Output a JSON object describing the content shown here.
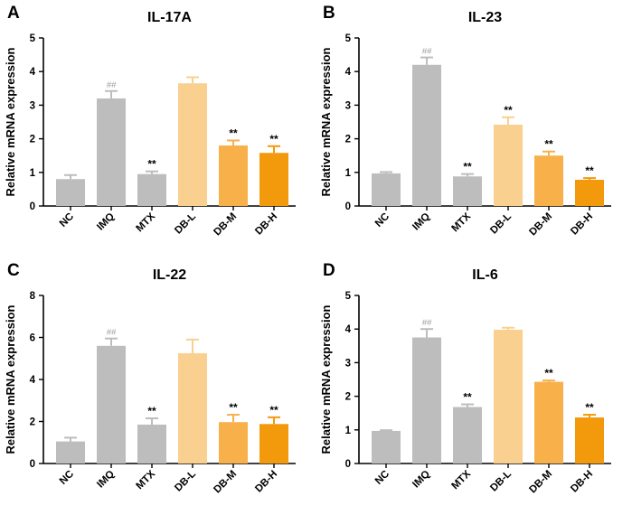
{
  "colors": {
    "NC": "#bdbdbd",
    "IMQ": "#bdbdbd",
    "MTX": "#bdbdbd",
    "DB-L": "#f9d08f",
    "DB-M": "#f7b04a",
    "DB-H": "#f39a0c",
    "hash": "#9a9a9a",
    "axis": "#000000"
  },
  "chart_data": [
    {
      "panel": "A",
      "type": "bar",
      "title": "IL-17A",
      "ylabel": "Relative mRNA expression",
      "categories": [
        "NC",
        "IMQ",
        "MTX",
        "DB-L",
        "DB-M",
        "DB-H"
      ],
      "values": [
        0.8,
        3.2,
        0.95,
        3.65,
        1.8,
        1.58
      ],
      "errors": [
        0.12,
        0.22,
        0.08,
        0.18,
        0.15,
        0.2
      ],
      "significance": [
        "",
        "##",
        "**",
        "",
        "**",
        "**"
      ],
      "ylim": [
        0,
        5
      ],
      "yticks": [
        0,
        1,
        2,
        3,
        4,
        5
      ]
    },
    {
      "panel": "B",
      "type": "bar",
      "title": "IL-23",
      "ylabel": "Relative mRNA expression",
      "categories": [
        "NC",
        "IMQ",
        "MTX",
        "DB-L",
        "DB-M",
        "DB-H"
      ],
      "values": [
        0.97,
        4.2,
        0.88,
        2.42,
        1.5,
        0.78
      ],
      "errors": [
        0.04,
        0.22,
        0.07,
        0.22,
        0.12,
        0.05
      ],
      "significance": [
        "",
        "##",
        "**",
        "**",
        "**",
        "**"
      ],
      "ylim": [
        0,
        5
      ],
      "yticks": [
        0,
        1,
        2,
        3,
        4,
        5
      ]
    },
    {
      "panel": "C",
      "type": "bar",
      "title": "IL-22",
      "ylabel": "Relative mRNA expression",
      "categories": [
        "NC",
        "IMQ",
        "MTX",
        "DB-L",
        "DB-M",
        "DB-H"
      ],
      "values": [
        1.05,
        5.6,
        1.85,
        5.25,
        1.97,
        1.88
      ],
      "errors": [
        0.18,
        0.35,
        0.3,
        0.65,
        0.35,
        0.32
      ],
      "significance": [
        "",
        "##",
        "**",
        "",
        "**",
        "**"
      ],
      "ylim": [
        0,
        8
      ],
      "yticks": [
        0,
        2,
        4,
        6,
        8
      ]
    },
    {
      "panel": "D",
      "type": "bar",
      "title": "IL-6",
      "ylabel": "Relative mRNA expression",
      "categories": [
        "NC",
        "IMQ",
        "MTX",
        "DB-L",
        "DB-M",
        "DB-H"
      ],
      "values": [
        0.97,
        3.75,
        1.68,
        3.98,
        2.43,
        1.37
      ],
      "errors": [
        0.02,
        0.25,
        0.08,
        0.06,
        0.04,
        0.08
      ],
      "significance": [
        "",
        "##",
        "**",
        "",
        "**",
        "**"
      ],
      "ylim": [
        0,
        5
      ],
      "yticks": [
        0,
        1,
        2,
        3,
        4,
        5
      ]
    }
  ]
}
